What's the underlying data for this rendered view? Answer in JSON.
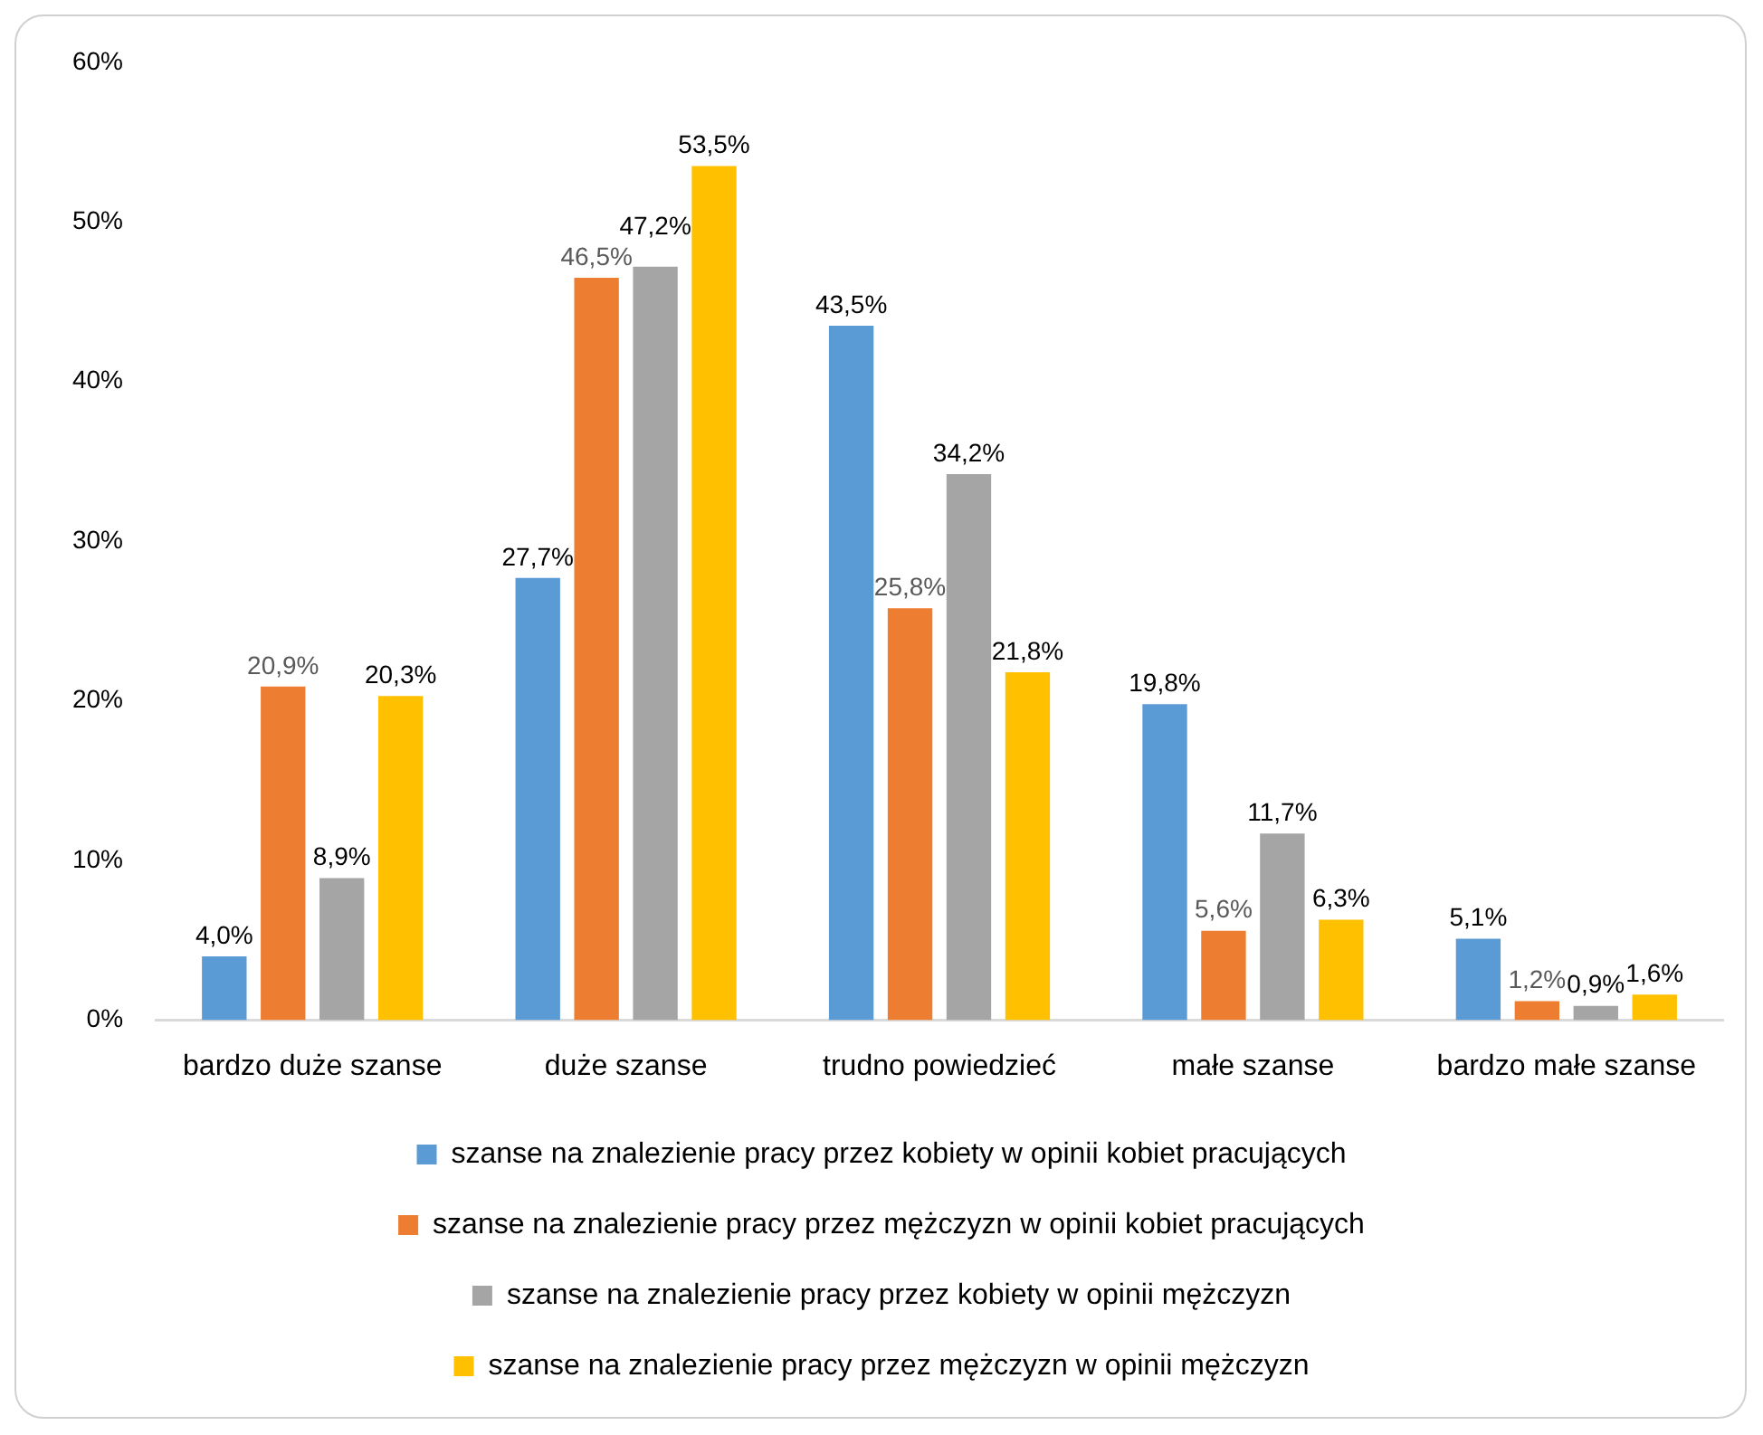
{
  "chart_data": {
    "type": "bar",
    "categories": [
      "bardzo duże szanse",
      "duże szanse",
      "trudno powiedzieć",
      "małe szanse",
      "bardzo małe szanse"
    ],
    "series": [
      {
        "name": "szanse na znalezienie pracy przez kobiety w opinii kobiet pracujących",
        "color": "#5b9bd5",
        "values": [
          4.0,
          27.7,
          43.5,
          19.8,
          5.1
        ],
        "value_labels": [
          "4,0%",
          "27,7%",
          "43,5%",
          "19,8%",
          "5,1%"
        ]
      },
      {
        "name": "szanse na znalezienie pracy przez mężczyzn w opinii kobiet pracujących",
        "color": "#ed7d31",
        "values": [
          20.9,
          46.5,
          25.8,
          5.6,
          1.2
        ],
        "value_labels": [
          "20,9%",
          "46,5%",
          "25,8%",
          "5,6%",
          "1,2%"
        ]
      },
      {
        "name": "szanse na znalezienie pracy przez kobiety w opinii mężczyzn",
        "color": "#a5a5a5",
        "values": [
          8.9,
          47.2,
          34.2,
          11.7,
          0.9
        ],
        "value_labels": [
          "8,9%",
          "47,2%",
          "34,2%",
          "11,7%",
          "0,9%"
        ]
      },
      {
        "name": "szanse na znalezienie pracy przez mężczyzn w opinii mężczyzn",
        "color": "#ffc000",
        "values": [
          20.3,
          53.5,
          21.8,
          6.3,
          1.6
        ],
        "value_labels": [
          "20,3%",
          "53,5%",
          "21,8%",
          "6,3%",
          "1,6%"
        ]
      }
    ],
    "ylim": [
      0,
      60
    ],
    "yticks": [
      {
        "value": 0,
        "label": "0%"
      },
      {
        "value": 10,
        "label": "10%"
      },
      {
        "value": 20,
        "label": "20%"
      },
      {
        "value": 30,
        "label": "30%"
      },
      {
        "value": 40,
        "label": "40%"
      },
      {
        "value": 50,
        "label": "50%"
      },
      {
        "value": 60,
        "label": "60%"
      }
    ],
    "legend": "bottom"
  }
}
